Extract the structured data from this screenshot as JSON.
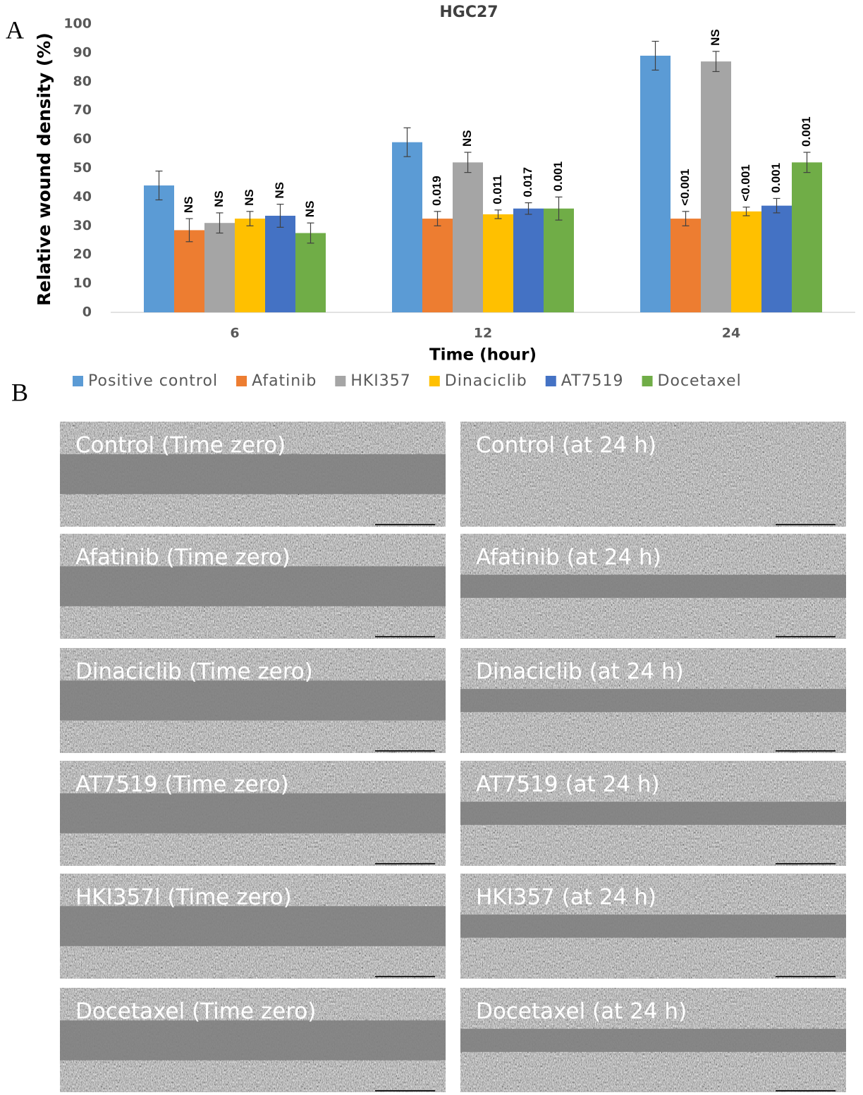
{
  "panel_labels": [
    "A",
    "B"
  ],
  "chart_data": {
    "type": "bar",
    "title": "HGC27",
    "x_label": "Time (hour)",
    "y_label": "Relative wound density (%)",
    "categories": [
      "6",
      "12",
      "24"
    ],
    "ylim": [
      0,
      100
    ],
    "yticks": [
      0,
      10,
      20,
      30,
      40,
      50,
      60,
      70,
      80,
      90,
      100
    ],
    "grid": false,
    "legend": "bottom",
    "series": [
      {
        "name": "Positive control",
        "color": "#5b9bd5",
        "values": [
          44,
          59,
          89
        ],
        "errors": [
          5,
          5,
          5
        ]
      },
      {
        "name": "Afatinib",
        "color": "#ed7d31",
        "values": [
          28.5,
          32.5,
          32.5
        ],
        "errors": [
          4,
          2.5,
          2.5
        ],
        "significance": [
          "NS",
          "0.019",
          "<0.001"
        ]
      },
      {
        "name": "HKI357",
        "color": "#a5a5a5",
        "values": [
          31,
          52,
          87
        ],
        "errors": [
          3.5,
          3.5,
          3.5
        ],
        "significance": [
          "NS",
          "NS",
          "NS"
        ]
      },
      {
        "name": "Dinaciclib",
        "color": "#ffc000",
        "values": [
          32.5,
          34,
          35
        ],
        "errors": [
          2.5,
          1.5,
          1.5
        ],
        "significance": [
          "NS",
          "0.011",
          "<0.001"
        ]
      },
      {
        "name": "AT7519",
        "color": "#4472c4",
        "values": [
          33.5,
          36,
          37
        ],
        "errors": [
          4,
          2,
          2.5
        ],
        "significance": [
          "NS",
          "0.017",
          "0.001"
        ]
      },
      {
        "name": "Docetaxel",
        "color": "#70ad47",
        "values": [
          27.5,
          36,
          52
        ],
        "errors": [
          3.5,
          4,
          3.5
        ],
        "significance": [
          "NS",
          "0.001",
          "0.001"
        ]
      }
    ]
  },
  "images": [
    [
      "Control (Time zero)",
      "Control (at 24 h)"
    ],
    [
      "Afatinib (Time zero)",
      "Afatinib (at 24 h)"
    ],
    [
      "Dinaciclib (Time zero)",
      "Dinaciclib (at 24 h)"
    ],
    [
      "AT7519 (Time zero)",
      "AT7519 (at 24 h)"
    ],
    [
      "HKI357l (Time zero)",
      "HKI357 (at 24 h)"
    ],
    [
      "Docetaxel (Time zero)",
      "Docetaxel (at 24 h)"
    ]
  ]
}
